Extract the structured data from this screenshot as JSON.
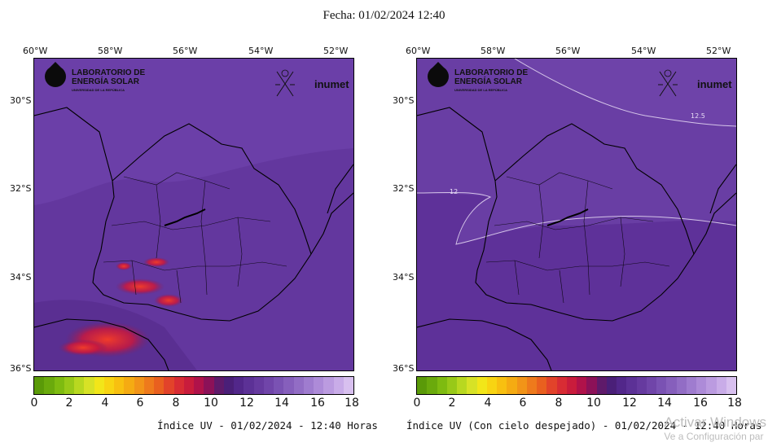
{
  "header": {
    "title": "Fecha: 01/02/2024 12:40"
  },
  "maps": [
    {
      "id": "left",
      "caption": "Índice UV - 01/02/2024 - 12:40 Horas",
      "lon_labels": [
        "60°W",
        "58°W",
        "56°W",
        "54°W",
        "52°W"
      ],
      "lat_labels": [
        "30°S",
        "32°S",
        "34°S",
        "36°S"
      ]
    },
    {
      "id": "right",
      "caption": "Índice UV (Con cielo despejado) - 01/02/2024 - 12:40 Horas",
      "lon_labels": [
        "60°W",
        "58°W",
        "56°W",
        "54°W",
        "52°W"
      ],
      "lat_labels": [
        "30°S",
        "32°S",
        "34°S",
        "36°S"
      ],
      "contour_labels": [
        "12.5",
        "12"
      ]
    }
  ],
  "logos": {
    "lab_line1": "LABORATORIO DE",
    "lab_line2": "ENERGÍA SOLAR",
    "lab_line3": "UNIVERSIDAD DE LA REPÚBLICA",
    "inumet": "inumet"
  },
  "colorbar": {
    "ticks": [
      "0",
      "2",
      "4",
      "6",
      "8",
      "10",
      "12",
      "14",
      "16",
      "18"
    ],
    "range": [
      0,
      18
    ],
    "colors": [
      "#5a9a08",
      "#6aaa0c",
      "#7ebb10",
      "#98c918",
      "#b8d820",
      "#d7e226",
      "#f2e619",
      "#f8d412",
      "#f8c010",
      "#f5ab12",
      "#f29418",
      "#ee7a1c",
      "#e9601f",
      "#e2432a",
      "#d82c34",
      "#c91c3c",
      "#b0124a",
      "#8c1158",
      "#5f1a6a",
      "#4a1f78",
      "#52278a",
      "#5c3196",
      "#663a9f",
      "#7045a9",
      "#7a52b3",
      "#865fbc",
      "#926dc5",
      "#9f7ccf",
      "#ad8bd8",
      "#bb9be0",
      "#c9ace8",
      "#d8c0ef"
    ]
  },
  "watermark": {
    "line1": "Activar Windows",
    "line2": "Ve a Configuración par"
  }
}
